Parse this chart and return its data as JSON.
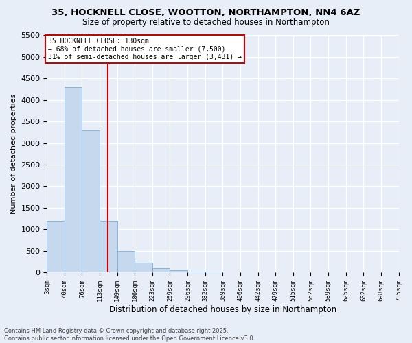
{
  "title_line1": "35, HOCKNELL CLOSE, WOOTTON, NORTHAMPTON, NN4 6AZ",
  "title_line2": "Size of property relative to detached houses in Northampton",
  "xlabel": "Distribution of detached houses by size in Northampton",
  "ylabel": "Number of detached properties",
  "annotation_title": "35 HOCKNELL CLOSE: 130sqm",
  "annotation_line2": "← 68% of detached houses are smaller (7,500)",
  "annotation_line3": "31% of semi-detached houses are larger (3,431) →",
  "footer_line1": "Contains HM Land Registry data © Crown copyright and database right 2025.",
  "footer_line2": "Contains public sector information licensed under the Open Government Licence v3.0.",
  "property_size": 130,
  "bin_edges": [
    3,
    40,
    76,
    113,
    149,
    186,
    223,
    259,
    296,
    332,
    369,
    406,
    442,
    479,
    515,
    552,
    589,
    625,
    662,
    698,
    735
  ],
  "bar_heights": [
    1200,
    4300,
    3300,
    1200,
    500,
    220,
    100,
    40,
    15,
    8,
    4,
    2,
    2,
    1,
    1,
    0,
    0,
    0,
    0,
    0
  ],
  "bar_color": "#c5d8ee",
  "bar_edge_color": "#7aaed6",
  "vline_color": "#cc0000",
  "annotation_border_color": "#cc0000",
  "bg_color": "#e8eef8",
  "grid_color": "#ffffff",
  "ylim_max": 5500,
  "yticks": [
    0,
    500,
    1000,
    1500,
    2000,
    2500,
    3000,
    3500,
    4000,
    4500,
    5000,
    5500
  ]
}
